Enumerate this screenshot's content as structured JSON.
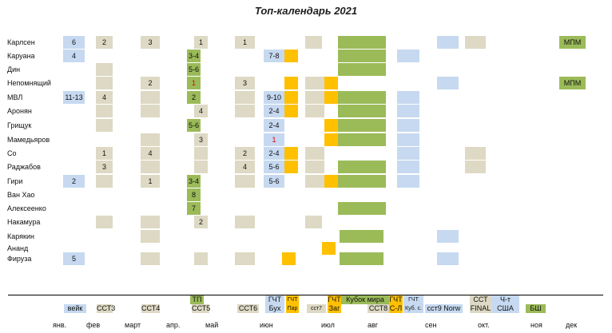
{
  "title": "Топ-календарь 2021",
  "colors": {
    "blue": "#c6d9f0",
    "beige": "#ddd9c4",
    "green": "#9bbb59",
    "orange": "#ffc000",
    "red": "#e00000"
  },
  "players": [
    {
      "name": "Карлсен",
      "cells": [
        [
          "A",
          "6"
        ],
        [
          "B",
          "2"
        ],
        [
          "C",
          "3"
        ],
        [
          "Db",
          "1"
        ],
        [
          "E",
          "1"
        ],
        [
          "Hs",
          ""
        ],
        [
          "J",
          ""
        ],
        [
          "L",
          ""
        ],
        [
          "M",
          ""
        ],
        [
          "N",
          "МПМ"
        ]
      ]
    },
    {
      "name": "Каруана",
      "cells": [
        [
          "A",
          "4"
        ],
        [
          "Dg",
          "3-4"
        ],
        [
          "F",
          "7-8"
        ],
        [
          "G",
          ""
        ],
        [
          "J",
          ""
        ],
        [
          "K",
          ""
        ]
      ]
    },
    {
      "name": "Дин",
      "cells": [
        [
          "B",
          ""
        ],
        [
          "Dg",
          "5-6"
        ],
        [
          "J",
          ""
        ]
      ]
    },
    {
      "name": "Непомнящий",
      "cells": [
        [
          "B",
          ""
        ],
        [
          "C",
          "2"
        ],
        [
          "Dg",
          "1",
          "red"
        ],
        [
          "E",
          "3"
        ],
        [
          "G",
          ""
        ],
        [
          "H",
          ""
        ],
        [
          "I",
          ""
        ],
        [
          "L",
          ""
        ],
        [
          "N",
          "МПМ"
        ]
      ]
    },
    {
      "name": "МВЛ",
      "cells": [
        [
          "A",
          "11-13"
        ],
        [
          "B",
          "4"
        ],
        [
          "C",
          ""
        ],
        [
          "Dg",
          "2"
        ],
        [
          "E",
          ""
        ],
        [
          "F",
          "9-10"
        ],
        [
          "G",
          ""
        ],
        [
          "H",
          ""
        ],
        [
          "I",
          ""
        ],
        [
          "J",
          ""
        ],
        [
          "K",
          ""
        ]
      ]
    },
    {
      "name": "Аронян",
      "cells": [
        [
          "B",
          ""
        ],
        [
          "C",
          ""
        ],
        [
          "Db",
          "4"
        ],
        [
          "E",
          ""
        ],
        [
          "F",
          "2-4"
        ],
        [
          "G",
          ""
        ],
        [
          "H",
          ""
        ],
        [
          "J",
          ""
        ],
        [
          "K",
          ""
        ]
      ]
    },
    {
      "name": "Грищук",
      "cells": [
        [
          "B",
          ""
        ],
        [
          "Dg",
          "5-6"
        ],
        [
          "F",
          "2-4"
        ],
        [
          "I",
          ""
        ],
        [
          "J",
          ""
        ],
        [
          "K",
          ""
        ]
      ]
    },
    {
      "name": "Мамедьяров",
      "cells": [
        [
          "C",
          ""
        ],
        [
          "Db",
          "3"
        ],
        [
          "F",
          "1",
          "red"
        ],
        [
          "I",
          ""
        ],
        [
          "J",
          ""
        ],
        [
          "K",
          ""
        ]
      ]
    },
    {
      "name": "Со",
      "cells": [
        [
          "B",
          "1"
        ],
        [
          "C",
          "4"
        ],
        [
          "Db",
          ""
        ],
        [
          "E",
          "2"
        ],
        [
          "F",
          "2-4"
        ],
        [
          "G",
          ""
        ],
        [
          "H",
          ""
        ],
        [
          "K",
          ""
        ],
        [
          "M",
          ""
        ]
      ]
    },
    {
      "name": "Раджабов",
      "cells": [
        [
          "B",
          "3"
        ],
        [
          "C",
          ""
        ],
        [
          "Db",
          ""
        ],
        [
          "E",
          "4"
        ],
        [
          "F",
          "5-6"
        ],
        [
          "G",
          ""
        ],
        [
          "H",
          ""
        ],
        [
          "J",
          ""
        ],
        [
          "K",
          ""
        ],
        [
          "M",
          ""
        ]
      ]
    },
    {
      "name": "Гири",
      "cells": [
        [
          "A",
          "2"
        ],
        [
          "B",
          ""
        ],
        [
          "C",
          "1"
        ],
        [
          "Dg",
          "3-4"
        ],
        [
          "E",
          ""
        ],
        [
          "F",
          "5-6"
        ],
        [
          "H",
          ""
        ],
        [
          "I",
          ""
        ],
        [
          "J",
          ""
        ],
        [
          "K",
          ""
        ]
      ]
    },
    {
      "name": "Ван Хао",
      "cells": [
        [
          "Dg",
          "8"
        ]
      ]
    },
    {
      "name": "Алексеенко",
      "cells": [
        [
          "Dg",
          "7"
        ],
        [
          "J",
          ""
        ]
      ]
    },
    {
      "name": "Накамура",
      "cells": [
        [
          "B",
          ""
        ],
        [
          "C",
          ""
        ],
        [
          "Db",
          "2"
        ],
        [
          "E",
          ""
        ],
        [
          "Hs",
          ""
        ]
      ]
    },
    {
      "name": "Карякин",
      "cells": [
        [
          "C",
          ""
        ],
        [
          "Js",
          ""
        ],
        [
          "L",
          ""
        ]
      ]
    },
    {
      "name": "Ананд",
      "cells": [
        [
          "Ia",
          ""
        ]
      ]
    },
    {
      "name": "Фируза",
      "cells": [
        [
          "A",
          "5"
        ],
        [
          "C",
          ""
        ],
        [
          "Db",
          ""
        ],
        [
          "E",
          ""
        ],
        [
          "Gf",
          ""
        ],
        [
          "Js",
          ""
        ],
        [
          "L",
          ""
        ]
      ]
    }
  ],
  "legend": [
    {
      "id": "tp",
      "l1": "ТП",
      "l2": "",
      "color": "green"
    },
    {
      "id": "wijk",
      "l1": "",
      "l2": "вейк",
      "color": "blue"
    },
    {
      "id": "sst3",
      "l1": "",
      "l2": "ССТ3",
      "color": "beige"
    },
    {
      "id": "sst4",
      "l1": "",
      "l2": "ССТ4",
      "color": "beige"
    },
    {
      "id": "sst5",
      "l1": "",
      "l2": "ССТ5",
      "color": "beige"
    },
    {
      "id": "sst6",
      "l1": "",
      "l2": "ССТ6",
      "color": "beige"
    },
    {
      "id": "gcht-bukh",
      "l1": "ГЧТ",
      "l2": "Бух",
      "color": "blue"
    },
    {
      "id": "gcht-par",
      "l1": "ГЧТ",
      "l2": "Пар",
      "color": "orange",
      "small": true
    },
    {
      "id": "sst7",
      "l1": "",
      "l2": "сст7",
      "color": "beige",
      "small": true
    },
    {
      "id": "gcht-zag",
      "l1": "ГЧТ",
      "l2": "Заг",
      "color": "orange"
    },
    {
      "id": "world-cup",
      "l1": "Кубок мира",
      "l2": "",
      "color": "green"
    },
    {
      "id": "sst8",
      "l1": "",
      "l2": "ССТ8",
      "color": "beige"
    },
    {
      "id": "gcht-sl",
      "l1": "ГЧТ",
      "l2": "С-Л",
      "color": "orange"
    },
    {
      "id": "gcht-kub",
      "l1": "ГЧТ",
      "l2": "Куб. с.",
      "color": "blue",
      "small": true
    },
    {
      "id": "sst9-norw",
      "l1": "",
      "l2": "сст9 Norw",
      "color": "blue"
    },
    {
      "id": "sst-final",
      "l1": "ССТ",
      "l2": "FINAL",
      "color": "beige"
    },
    {
      "id": "usa-ch",
      "l1": "Ч-т",
      "l2": "США",
      "color": "blue"
    },
    {
      "id": "bsh",
      "l1": "",
      "l2": "БШ",
      "color": "green"
    }
  ],
  "months": [
    "янв.",
    "фев",
    "март",
    "апр.",
    "май",
    "июн",
    "июл",
    "авг",
    "сен",
    "окт.",
    "ноя",
    "дек"
  ]
}
